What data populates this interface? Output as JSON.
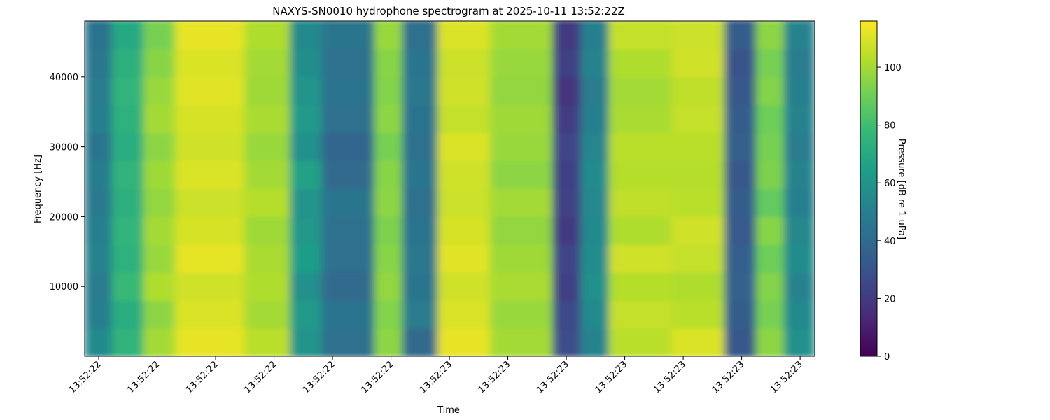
{
  "chart_data": {
    "type": "heatmap",
    "title": "NAXYS-SN0010 hydrophone spectrogram at 2025-10-11 13:52:22Z",
    "xlabel": "Time",
    "ylabel": "Frequency [Hz]",
    "zlabel": "Pressure [dB re 1 uPa]",
    "colormap": "viridis",
    "xlim": [
      22.376,
      23.625
    ],
    "xticks": [
      {
        "value": 22.4,
        "label": "13:52:22"
      },
      {
        "value": 22.5,
        "label": "13:52:22"
      },
      {
        "value": 22.6,
        "label": "13:52:22"
      },
      {
        "value": 22.7,
        "label": "13:52:22"
      },
      {
        "value": 22.8,
        "label": "13:52:22"
      },
      {
        "value": 22.9,
        "label": "13:52:22"
      },
      {
        "value": 23.0,
        "label": "13:52:23"
      },
      {
        "value": 23.1,
        "label": "13:52:23"
      },
      {
        "value": 23.2,
        "label": "13:52:23"
      },
      {
        "value": 23.3,
        "label": "13:52:23"
      },
      {
        "value": 23.4,
        "label": "13:52:23"
      },
      {
        "value": 23.5,
        "label": "13:52:23"
      },
      {
        "value": 23.6,
        "label": "13:52:23"
      }
    ],
    "ylim": [
      0,
      48000
    ],
    "yticks": [
      10000,
      20000,
      30000,
      40000
    ],
    "zlim": [
      0,
      116
    ],
    "zticks": [
      0,
      20,
      40,
      60,
      80,
      100
    ],
    "x_edges": [
      22.376,
      22.423,
      22.477,
      22.531,
      22.65,
      22.728,
      22.782,
      22.872,
      22.92,
      22.98,
      23.07,
      23.177,
      23.225,
      23.273,
      23.381,
      23.471,
      23.525,
      23.573,
      23.625
    ],
    "y_edges": [
      0,
      4000,
      8000,
      12000,
      16000,
      20000,
      24000,
      28000,
      32000,
      36000,
      40000,
      44000,
      48000
    ],
    "z": [
      [
        55,
        50,
        48,
        52,
        50,
        47,
        49,
        45,
        50,
        48,
        46,
        44
      ],
      [
        75,
        72,
        78,
        74,
        76,
        73,
        75,
        72,
        74,
        76,
        73,
        70
      ],
      [
        100,
        96,
        102,
        98,
        100,
        97,
        99,
        96,
        100,
        98,
        95,
        92
      ],
      [
        112,
        110,
        108,
        112,
        109,
        107,
        110,
        108,
        109,
        111,
        110,
        112
      ],
      [
        104,
        100,
        102,
        101,
        99,
        103,
        100,
        98,
        101,
        99,
        100,
        102
      ],
      [
        60,
        62,
        58,
        64,
        61,
        60,
        66,
        58,
        62,
        60,
        57,
        55
      ],
      [
        42,
        44,
        40,
        42,
        43,
        45,
        40,
        38,
        42,
        44,
        43,
        45
      ],
      [
        96,
        94,
        97,
        95,
        93,
        96,
        95,
        92,
        96,
        94,
        95,
        98
      ],
      [
        40,
        48,
        45,
        46,
        44,
        42,
        45,
        43,
        44,
        46,
        45,
        42
      ],
      [
        112,
        110,
        108,
        111,
        109,
        107,
        108,
        110,
        106,
        108,
        107,
        110
      ],
      [
        100,
        98,
        101,
        99,
        97,
        100,
        96,
        98,
        99,
        97,
        98,
        100
      ],
      [
        28,
        26,
        22,
        24,
        20,
        23,
        22,
        24,
        21,
        18,
        22,
        20
      ],
      [
        52,
        55,
        58,
        56,
        55,
        54,
        56,
        53,
        50,
        48,
        52,
        50
      ],
      [
        104,
        106,
        103,
        108,
        102,
        105,
        103,
        104,
        101,
        100,
        102,
        106
      ],
      [
        110,
        104,
        102,
        106,
        108,
        104,
        103,
        104,
        106,
        105,
        108,
        107
      ],
      [
        32,
        34,
        36,
        35,
        33,
        34,
        32,
        35,
        34,
        32,
        30,
        34
      ],
      [
        96,
        92,
        94,
        90,
        95,
        88,
        93,
        92,
        90,
        94,
        92,
        96
      ],
      [
        58,
        55,
        52,
        56,
        54,
        50,
        52,
        48,
        52,
        50,
        48,
        52
      ]
    ]
  }
}
